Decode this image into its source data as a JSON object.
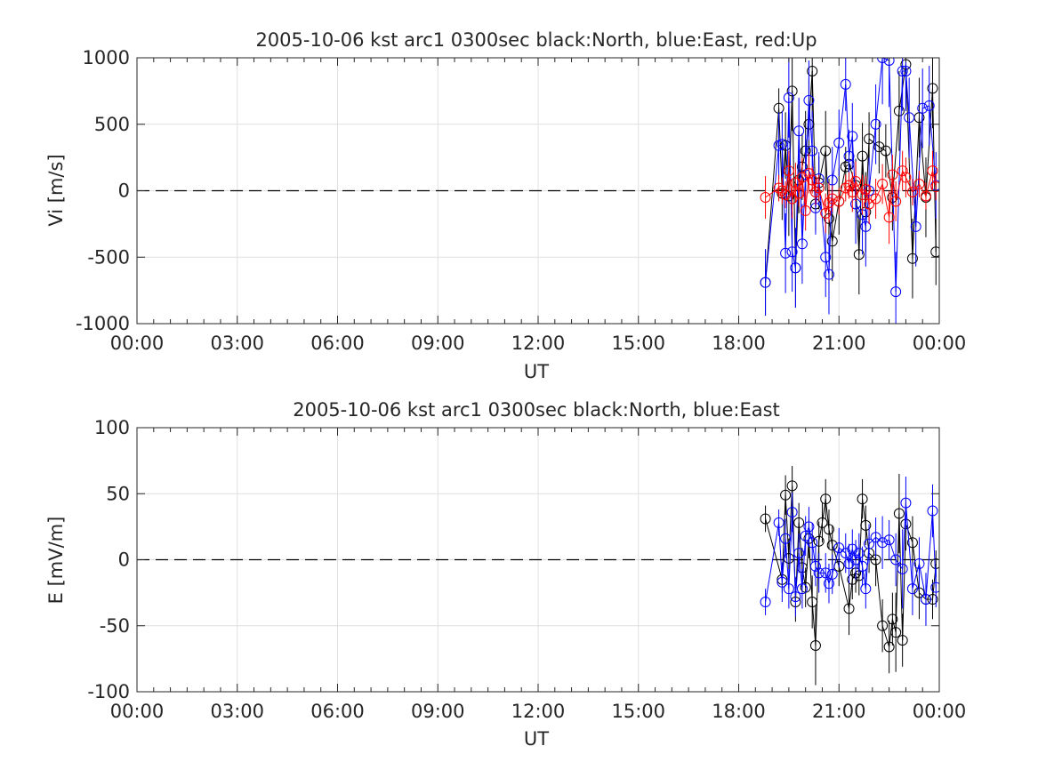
{
  "chart_data": [
    {
      "type": "scatter",
      "title": "2005-10-06 kst arc1 0300sec black:North, blue:East, red:Up",
      "xlabel": "UT",
      "ylabel": "Vi [m/s]",
      "xlim_hours": [
        0,
        24
      ],
      "ylim": [
        -1000,
        1000
      ],
      "xticks": [
        0,
        3,
        6,
        9,
        12,
        15,
        18,
        21,
        24
      ],
      "xtick_labels": [
        "00:00",
        "03:00",
        "06:00",
        "09:00",
        "12:00",
        "15:00",
        "18:00",
        "21:00",
        "00:00"
      ],
      "yticks": [
        -1000,
        -500,
        0,
        500,
        1000
      ],
      "ytick_labels": [
        "-1000",
        "-500",
        "0",
        "500",
        "1000"
      ],
      "grid": true,
      "zero_line": true,
      "series": [
        {
          "color": "#000000",
          "x": [
            18.8,
            19.2,
            19.3,
            19.4,
            19.5,
            19.6,
            19.7,
            19.8,
            19.9,
            20.0,
            20.1,
            20.2,
            20.3,
            20.4,
            20.6,
            20.7,
            20.8,
            21.0,
            21.2,
            21.3,
            21.5,
            21.6,
            21.7,
            21.8,
            21.9,
            22.2,
            22.4,
            22.6,
            22.8,
            23.0,
            23.2,
            23.4,
            23.6,
            23.8,
            23.9
          ],
          "y": [
            -690,
            620,
            -20,
            340,
            -40,
            750,
            -580,
            80,
            180,
            300,
            500,
            900,
            -100,
            60,
            300,
            -210,
            -380,
            -80,
            180,
            200,
            40,
            -480,
            260,
            -160,
            390,
            330,
            300,
            -50,
            600,
            950,
            -510,
            550,
            -50,
            770,
            -460
          ],
          "err": [
            250,
            150,
            200,
            250,
            300,
            300,
            300,
            250,
            250,
            300,
            350,
            350,
            200,
            200,
            300,
            300,
            300,
            250,
            150,
            200,
            200,
            300,
            250,
            300,
            200,
            200,
            200,
            250,
            300,
            350,
            300,
            300,
            300,
            300,
            250
          ]
        },
        {
          "color": "#0000ff",
          "x": [
            18.8,
            19.2,
            19.3,
            19.4,
            19.5,
            19.6,
            19.7,
            19.8,
            19.9,
            20.0,
            20.1,
            20.2,
            20.3,
            20.4,
            20.6,
            20.7,
            20.8,
            21.0,
            21.2,
            21.3,
            21.4,
            21.5,
            21.7,
            21.8,
            21.9,
            22.1,
            22.3,
            22.5,
            22.7,
            22.9,
            23.0,
            23.1,
            23.3,
            23.5,
            23.7,
            23.9
          ],
          "y": [
            -690,
            340,
            350,
            -470,
            700,
            -460,
            -580,
            450,
            -400,
            120,
            680,
            300,
            -130,
            90,
            -500,
            -630,
            80,
            360,
            800,
            260,
            410,
            -100,
            -180,
            -270,
            0,
            500,
            1000,
            980,
            -760,
            900,
            900,
            550,
            -270,
            620,
            640,
            40
          ],
          "err": [
            250,
            250,
            250,
            300,
            300,
            300,
            300,
            250,
            300,
            300,
            300,
            300,
            200,
            200,
            300,
            300,
            250,
            250,
            200,
            200,
            250,
            300,
            300,
            300,
            250,
            300,
            350,
            350,
            300,
            300,
            300,
            300,
            300,
            300,
            300,
            250
          ]
        },
        {
          "color": "#ff0000",
          "x": [
            18.8,
            19.2,
            19.3,
            19.4,
            19.5,
            19.6,
            19.7,
            19.8,
            19.9,
            20.0,
            20.1,
            20.2,
            20.3,
            20.4,
            20.6,
            20.7,
            20.8,
            21.0,
            21.2,
            21.3,
            21.4,
            21.5,
            21.7,
            21.8,
            21.9,
            22.1,
            22.3,
            22.5,
            22.6,
            22.7,
            22.9,
            23.0,
            23.2,
            23.4,
            23.6,
            23.8,
            23.9
          ],
          "y": [
            -50,
            20,
            0,
            -30,
            150,
            -60,
            60,
            -20,
            100,
            -150,
            130,
            80,
            -10,
            20,
            -170,
            -90,
            -60,
            -80,
            20,
            40,
            -10,
            70,
            -30,
            10,
            -100,
            -60,
            50,
            -200,
            120,
            -80,
            150,
            100,
            -10,
            50,
            -40,
            150,
            30
          ],
          "err": [
            160,
            100,
            100,
            100,
            150,
            150,
            150,
            100,
            150,
            150,
            150,
            100,
            100,
            100,
            150,
            150,
            100,
            100,
            100,
            100,
            150,
            150,
            150,
            100,
            150,
            150,
            150,
            200,
            150,
            150,
            150,
            150,
            100,
            100,
            100,
            150,
            100
          ]
        }
      ]
    },
    {
      "type": "scatter",
      "title": "2005-10-06 kst arc1 0300sec black:North, blue:East",
      "xlabel": "UT",
      "ylabel": "E [mV/m]",
      "xlim_hours": [
        0,
        24
      ],
      "ylim": [
        -100,
        100
      ],
      "xticks": [
        0,
        3,
        6,
        9,
        12,
        15,
        18,
        21,
        24
      ],
      "xtick_labels": [
        "00:00",
        "03:00",
        "06:00",
        "09:00",
        "12:00",
        "15:00",
        "18:00",
        "21:00",
        "00:00"
      ],
      "yticks": [
        -100,
        -50,
        0,
        50,
        100
      ],
      "ytick_labels": [
        "-100",
        "-50",
        "0",
        "50",
        "100"
      ],
      "grid": true,
      "zero_line": true,
      "series": [
        {
          "color": "#000000",
          "x": [
            18.8,
            19.3,
            19.4,
            19.5,
            19.6,
            19.7,
            19.8,
            19.9,
            20.0,
            20.1,
            20.2,
            20.3,
            20.4,
            20.5,
            20.6,
            20.7,
            20.8,
            21.0,
            21.3,
            21.4,
            21.5,
            21.6,
            21.7,
            21.8,
            21.9,
            22.1,
            22.3,
            22.5,
            22.6,
            22.7,
            22.8,
            22.9,
            23.0,
            23.2,
            23.4,
            23.6,
            23.8,
            23.9
          ],
          "y": [
            31,
            -15,
            49,
            1,
            56,
            -32,
            28,
            -6,
            -21,
            16,
            -32,
            -65,
            14,
            28,
            46,
            23,
            11,
            -5,
            -37,
            -15,
            -10,
            -12,
            46,
            26,
            5,
            0,
            -50,
            -66,
            -45,
            -55,
            35,
            -61,
            27,
            13,
            -25,
            -30,
            -30,
            -3
          ],
          "err": [
            10,
            10,
            15,
            15,
            15,
            15,
            15,
            15,
            15,
            15,
            20,
            30,
            15,
            15,
            15,
            15,
            15,
            15,
            20,
            15,
            15,
            15,
            15,
            15,
            15,
            20,
            20,
            20,
            20,
            30,
            30,
            20,
            20,
            20,
            20,
            20,
            15,
            10
          ]
        },
        {
          "color": "#0000ff",
          "x": [
            18.8,
            19.2,
            19.3,
            19.4,
            19.5,
            19.6,
            19.7,
            19.8,
            19.9,
            20.0,
            20.1,
            20.2,
            20.3,
            20.4,
            20.6,
            20.7,
            20.8,
            21.0,
            21.2,
            21.3,
            21.4,
            21.5,
            21.6,
            21.7,
            21.8,
            21.9,
            22.1,
            22.3,
            22.5,
            22.7,
            22.9,
            23.0,
            23.2,
            23.4,
            23.6,
            23.8,
            23.9
          ],
          "y": [
            -32,
            28,
            -17,
            16,
            -22,
            36,
            -28,
            5,
            -22,
            18,
            25,
            13,
            -5,
            -10,
            -10,
            -18,
            -11,
            9,
            5,
            -3,
            8,
            0,
            5,
            -5,
            -22,
            12,
            17,
            13,
            15,
            0,
            -7,
            43,
            -22,
            -3,
            -30,
            37,
            -21
          ],
          "err": [
            10,
            10,
            15,
            15,
            15,
            15,
            15,
            15,
            15,
            15,
            15,
            15,
            15,
            15,
            15,
            15,
            15,
            15,
            15,
            15,
            15,
            15,
            15,
            15,
            15,
            15,
            15,
            20,
            15,
            20,
            30,
            20,
            20,
            20,
            20,
            20,
            15
          ]
        }
      ]
    }
  ]
}
